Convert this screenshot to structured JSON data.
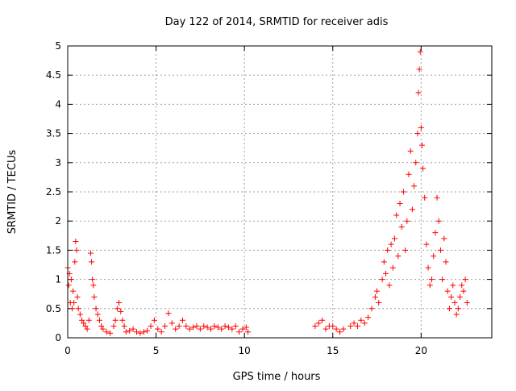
{
  "chart_data": {
    "type": "scatter",
    "title": "Day 122 of 2014, SRMTID for receiver adis",
    "xlabel": "GPS time / hours",
    "ylabel": "SRMTID / TECUs",
    "xlim": [
      0,
      24
    ],
    "ylim": [
      0,
      5
    ],
    "x_ticks": [
      0,
      5,
      10,
      15,
      20
    ],
    "x_tick_labels": [
      "0",
      "5",
      "10",
      "15",
      "20"
    ],
    "y_ticks": [
      0,
      0.5,
      1,
      1.5,
      2,
      2.5,
      3,
      3.5,
      4,
      4.5,
      5
    ],
    "y_tick_labels": [
      "0",
      "0.5",
      "1",
      "1.5",
      "2",
      "2.5",
      "3",
      "3.5",
      "4",
      "4.5",
      "5"
    ],
    "grid": true,
    "marker": "+",
    "marker_color": "#ff0000",
    "series": [
      {
        "name": "SRMTID",
        "points": [
          [
            0.0,
            1.2
          ],
          [
            0.05,
            0.9
          ],
          [
            0.1,
            1.1
          ],
          [
            0.15,
            0.6
          ],
          [
            0.2,
            1.0
          ],
          [
            0.25,
            0.5
          ],
          [
            0.3,
            0.8
          ],
          [
            0.35,
            0.6
          ],
          [
            0.4,
            1.3
          ],
          [
            0.45,
            1.65
          ],
          [
            0.5,
            1.5
          ],
          [
            0.55,
            0.7
          ],
          [
            0.6,
            0.5
          ],
          [
            0.7,
            0.4
          ],
          [
            0.8,
            0.3
          ],
          [
            0.9,
            0.25
          ],
          [
            1.0,
            0.2
          ],
          [
            1.1,
            0.15
          ],
          [
            1.2,
            0.3
          ],
          [
            1.3,
            1.45
          ],
          [
            1.35,
            1.3
          ],
          [
            1.4,
            1.0
          ],
          [
            1.45,
            0.9
          ],
          [
            1.5,
            0.7
          ],
          [
            1.6,
            0.5
          ],
          [
            1.7,
            0.4
          ],
          [
            1.8,
            0.3
          ],
          [
            1.9,
            0.2
          ],
          [
            2.0,
            0.15
          ],
          [
            2.2,
            0.1
          ],
          [
            2.4,
            0.08
          ],
          [
            2.6,
            0.2
          ],
          [
            2.7,
            0.3
          ],
          [
            2.8,
            0.5
          ],
          [
            2.9,
            0.6
          ],
          [
            3.0,
            0.45
          ],
          [
            3.1,
            0.3
          ],
          [
            3.2,
            0.2
          ],
          [
            3.3,
            0.1
          ],
          [
            3.5,
            0.12
          ],
          [
            3.7,
            0.15
          ],
          [
            3.9,
            0.1
          ],
          [
            4.1,
            0.08
          ],
          [
            4.3,
            0.1
          ],
          [
            4.5,
            0.12
          ],
          [
            4.7,
            0.2
          ],
          [
            4.9,
            0.3
          ],
          [
            5.1,
            0.15
          ],
          [
            5.3,
            0.1
          ],
          [
            5.5,
            0.2
          ],
          [
            5.7,
            0.42
          ],
          [
            5.9,
            0.25
          ],
          [
            6.1,
            0.15
          ],
          [
            6.3,
            0.2
          ],
          [
            6.5,
            0.3
          ],
          [
            6.7,
            0.2
          ],
          [
            6.9,
            0.15
          ],
          [
            7.1,
            0.18
          ],
          [
            7.3,
            0.2
          ],
          [
            7.5,
            0.15
          ],
          [
            7.7,
            0.2
          ],
          [
            7.9,
            0.18
          ],
          [
            8.1,
            0.15
          ],
          [
            8.3,
            0.2
          ],
          [
            8.5,
            0.18
          ],
          [
            8.7,
            0.15
          ],
          [
            8.9,
            0.2
          ],
          [
            9.1,
            0.18
          ],
          [
            9.3,
            0.15
          ],
          [
            9.5,
            0.2
          ],
          [
            9.7,
            0.1
          ],
          [
            9.9,
            0.15
          ],
          [
            10.1,
            0.18
          ],
          [
            10.2,
            0.1
          ],
          [
            14.0,
            0.2
          ],
          [
            14.2,
            0.25
          ],
          [
            14.4,
            0.3
          ],
          [
            14.6,
            0.15
          ],
          [
            14.8,
            0.2
          ],
          [
            15.0,
            0.2
          ],
          [
            15.2,
            0.15
          ],
          [
            15.4,
            0.1
          ],
          [
            15.6,
            0.15
          ],
          [
            16.0,
            0.2
          ],
          [
            16.2,
            0.25
          ],
          [
            16.4,
            0.2
          ],
          [
            16.6,
            0.3
          ],
          [
            16.8,
            0.25
          ],
          [
            17.0,
            0.35
          ],
          [
            17.2,
            0.5
          ],
          [
            17.4,
            0.7
          ],
          [
            17.5,
            0.8
          ],
          [
            17.6,
            0.6
          ],
          [
            17.8,
            1.0
          ],
          [
            17.9,
            1.3
          ],
          [
            18.0,
            1.1
          ],
          [
            18.1,
            1.5
          ],
          [
            18.2,
            0.9
          ],
          [
            18.3,
            1.6
          ],
          [
            18.4,
            1.2
          ],
          [
            18.5,
            1.7
          ],
          [
            18.6,
            2.1
          ],
          [
            18.7,
            1.4
          ],
          [
            18.8,
            2.3
          ],
          [
            18.9,
            1.9
          ],
          [
            19.0,
            2.5
          ],
          [
            19.1,
            1.5
          ],
          [
            19.2,
            2.0
          ],
          [
            19.3,
            2.8
          ],
          [
            19.4,
            3.2
          ],
          [
            19.5,
            2.2
          ],
          [
            19.6,
            2.6
          ],
          [
            19.7,
            3.0
          ],
          [
            19.8,
            3.5
          ],
          [
            19.85,
            4.2
          ],
          [
            19.9,
            4.6
          ],
          [
            19.95,
            4.9
          ],
          [
            20.0,
            3.6
          ],
          [
            20.05,
            3.3
          ],
          [
            20.1,
            2.9
          ],
          [
            20.2,
            2.4
          ],
          [
            20.3,
            1.6
          ],
          [
            20.4,
            1.2
          ],
          [
            20.5,
            0.9
          ],
          [
            20.6,
            1.0
          ],
          [
            20.7,
            1.4
          ],
          [
            20.8,
            1.8
          ],
          [
            20.9,
            2.4
          ],
          [
            21.0,
            2.0
          ],
          [
            21.1,
            1.5
          ],
          [
            21.2,
            1.0
          ],
          [
            21.3,
            1.7
          ],
          [
            21.4,
            1.3
          ],
          [
            21.5,
            0.8
          ],
          [
            21.6,
            0.5
          ],
          [
            21.7,
            0.7
          ],
          [
            21.8,
            0.9
          ],
          [
            21.9,
            0.6
          ],
          [
            22.0,
            0.4
          ],
          [
            22.1,
            0.5
          ],
          [
            22.2,
            0.7
          ],
          [
            22.3,
            0.9
          ],
          [
            22.4,
            0.8
          ],
          [
            22.5,
            1.0
          ],
          [
            22.6,
            0.6
          ]
        ]
      }
    ]
  }
}
